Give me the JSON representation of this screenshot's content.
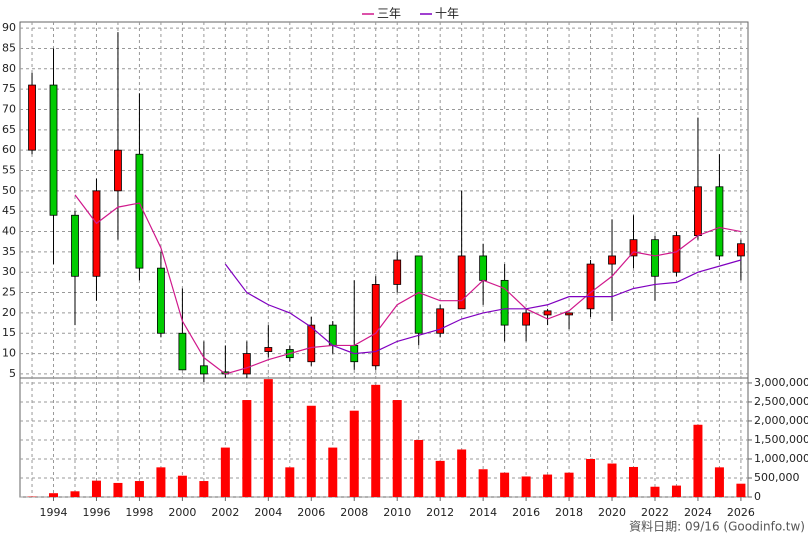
{
  "chart_data": [
    {
      "type": "candlestick",
      "x": [
        1993,
        1994,
        1995,
        1996,
        1997,
        1998,
        1999,
        2000,
        2001,
        2002,
        2003,
        2004,
        2005,
        2006,
        2007,
        2008,
        2009,
        2010,
        2011,
        2012,
        2013,
        2014,
        2015,
        2016,
        2017,
        2018,
        2019,
        2020,
        2021,
        2022,
        2023,
        2024,
        2025,
        2026
      ],
      "open": [
        60,
        76,
        44,
        29,
        50,
        59,
        31,
        15,
        7,
        5.5,
        5,
        10.5,
        11,
        8,
        17,
        12,
        7,
        27,
        34,
        15,
        21,
        34,
        28,
        17,
        19.5,
        19.5,
        21,
        32,
        34,
        38,
        30,
        39,
        51,
        34
      ],
      "high": [
        79,
        85,
        45,
        53,
        89,
        74,
        35,
        26,
        13,
        12,
        13,
        17,
        12,
        19,
        18,
        28,
        29,
        35,
        34,
        22,
        50,
        37,
        32,
        21,
        21,
        20,
        33,
        43,
        44,
        39,
        40,
        68,
        59,
        38
      ],
      "low": [
        59,
        32,
        17,
        23,
        38,
        28,
        14,
        6,
        3,
        4,
        4,
        9,
        8,
        7,
        10,
        6,
        6,
        25,
        12,
        14,
        21,
        22,
        13,
        13,
        17,
        16,
        19,
        18,
        31,
        23,
        29,
        38,
        33,
        28
      ],
      "close": [
        76,
        44,
        29,
        50,
        60,
        31,
        15,
        6,
        5,
        5,
        10,
        11.5,
        9,
        17,
        12,
        8,
        27,
        33,
        15,
        21,
        34,
        28,
        17,
        20,
        20.5,
        20,
        32,
        34,
        38,
        29,
        39,
        51,
        34,
        37
      ],
      "up_color": "#ff0000",
      "down_color": "#00cc00",
      "series": [
        {
          "name": "三年",
          "color": "#d0198c",
          "values": [
            null,
            null,
            49,
            42,
            46,
            47,
            36,
            18,
            9,
            5,
            6.5,
            8.5,
            10,
            11.5,
            12,
            12,
            15,
            22,
            25,
            23,
            23,
            28,
            26,
            21,
            18.5,
            20.5,
            25,
            29,
            35,
            34,
            35,
            39,
            41,
            40
          ]
        },
        {
          "name": "十年",
          "color": "#8000c0",
          "values": [
            null,
            null,
            null,
            null,
            null,
            null,
            null,
            null,
            null,
            32,
            25,
            22,
            20,
            16.5,
            12,
            10,
            10.5,
            13,
            14.5,
            16,
            18.5,
            20,
            21,
            21,
            22,
            24,
            24,
            24,
            26,
            27,
            27.5,
            30,
            31.5,
            33
          ]
        }
      ],
      "xlim": [
        1992.44,
        2026.33
      ],
      "xticks": [
        1994,
        1996,
        1998,
        2000,
        2002,
        2004,
        2006,
        2008,
        2010,
        2012,
        2014,
        2016,
        2018,
        2020,
        2022,
        2024,
        2026
      ],
      "ylim": [
        4,
        91.5
      ],
      "yticks": [
        5,
        10,
        15,
        20,
        25,
        30,
        35,
        40,
        45,
        50,
        55,
        60,
        65,
        70,
        75,
        80,
        85,
        90
      ],
      "grid": true
    },
    {
      "type": "bar",
      "values": [
        10000,
        100000,
        150000,
        430000,
        370000,
        420000,
        780000,
        560000,
        420000,
        1300000,
        2550000,
        3100000,
        780000,
        2400000,
        1300000,
        2270000,
        2950000,
        2550000,
        1500000,
        950000,
        1250000,
        730000,
        640000,
        540000,
        590000,
        640000,
        1000000,
        880000,
        790000,
        270000,
        300000,
        1900000,
        780000,
        350000
      ],
      "color": "#ff0000",
      "ylim": [
        0,
        3130000
      ],
      "yticks": [
        0,
        {
          "value": 500000,
          "label": "500,000"
        },
        {
          "value": 1000000,
          "label": "1,000,000"
        },
        {
          "value": 1500000,
          "label": "1,500,000"
        },
        {
          "value": 2000000,
          "label": "2,000,000"
        },
        {
          "value": 2500000,
          "label": "2,500,000"
        },
        {
          "value": 3000000,
          "label": "3,000,000"
        }
      ],
      "note": "資料日期: 09/16 (Goodinfo.tw)",
      "grid": true
    }
  ]
}
